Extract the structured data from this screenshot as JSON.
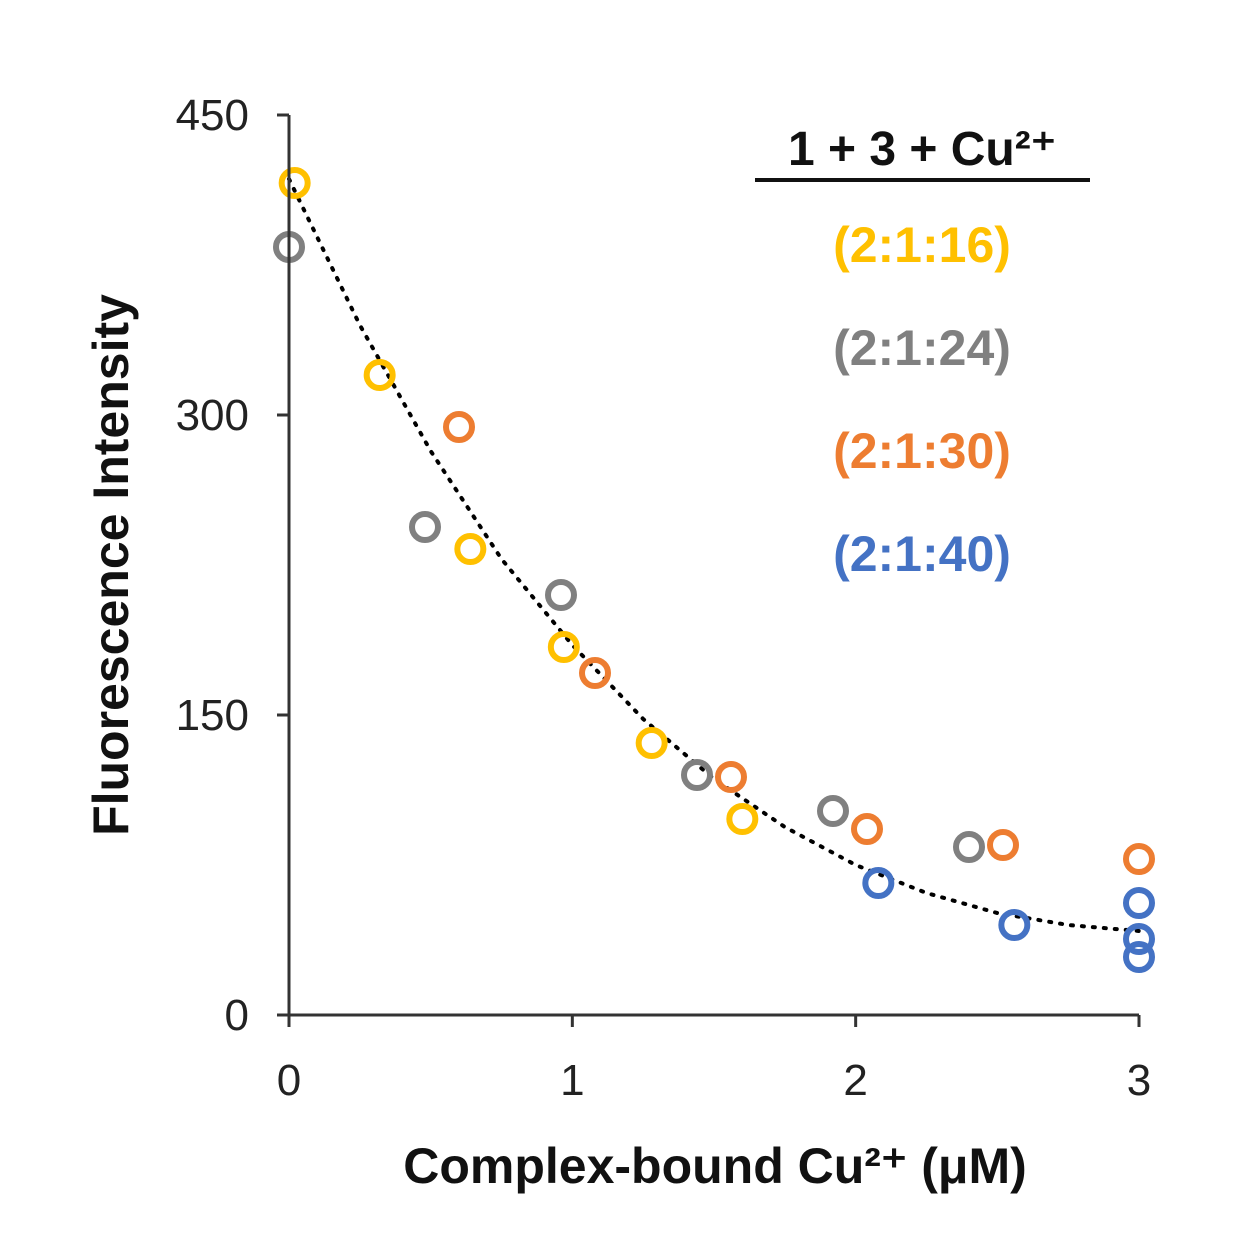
{
  "chart_data": {
    "type": "scatter",
    "title": "",
    "xlabel": "Complex-bound Cu²⁺ (μM)",
    "ylabel": "Fluorescence Intensity",
    "xlim": [
      0,
      3
    ],
    "ylim": [
      0,
      450
    ],
    "xticks": [
      0,
      1,
      2,
      3
    ],
    "yticks": [
      0,
      150,
      300,
      450
    ],
    "grid": false,
    "legend": {
      "title": "1 + 3 + Cu²⁺",
      "placement": "top-right",
      "entries": [
        {
          "label": "(2:1:16)",
          "color": "#FFC000"
        },
        {
          "label": "(2:1:24)",
          "color": "#808080"
        },
        {
          "label": "(2:1:30)",
          "color": "#ED7D31"
        },
        {
          "label": "(2:1:40)",
          "color": "#4472C4"
        }
      ]
    },
    "series": [
      {
        "name": "(2:1:16)",
        "color": "#FFC000",
        "x": [
          0.02,
          0.32,
          0.64,
          0.97,
          1.28,
          1.6
        ],
        "y": [
          416,
          320,
          233,
          184,
          136,
          98
        ]
      },
      {
        "name": "(2:1:24)",
        "color": "#808080",
        "x": [
          0.0,
          0.48,
          0.96,
          1.44,
          1.92,
          2.4
        ],
        "y": [
          384,
          244,
          210,
          120,
          102,
          84
        ]
      },
      {
        "name": "(2:1:30)",
        "color": "#ED7D31",
        "x": [
          0.6,
          1.08,
          1.56,
          2.04,
          2.52,
          3.0
        ],
        "y": [
          294,
          171,
          119,
          93,
          85,
          78
        ]
      },
      {
        "name": "(2:1:40)",
        "color": "#4472C4",
        "x": [
          2.08,
          2.56,
          3.0,
          3.0,
          3.0
        ],
        "y": [
          66,
          45,
          56,
          38,
          29
        ]
      }
    ],
    "trendline": {
      "style": "dotted",
      "color": "#000000",
      "x": [
        0,
        0.25,
        0.5,
        0.75,
        1.0,
        1.25,
        1.5,
        1.75,
        2.0,
        2.25,
        2.5,
        2.75,
        3.0
      ],
      "y": [
        418,
        345,
        282,
        228,
        185,
        148,
        118,
        94,
        75,
        61,
        51,
        45,
        42
      ]
    }
  }
}
